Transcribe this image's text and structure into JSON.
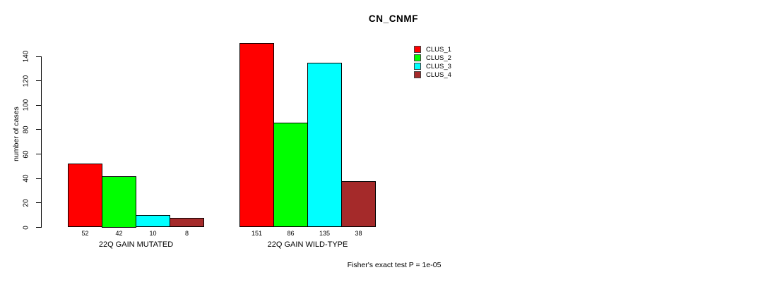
{
  "chart_data": {
    "type": "bar",
    "title": "CN_CNMF",
    "ylabel": "number of cases",
    "xlabel": "",
    "ylim": [
      0,
      140
    ],
    "yticks": [
      0,
      20,
      40,
      60,
      80,
      100,
      120,
      140
    ],
    "grid": false,
    "legend_position": "top-right",
    "bar_value_labels_shown": true,
    "categories": [
      "22Q GAIN MUTATED",
      "22Q GAIN WILD-TYPE"
    ],
    "series": [
      {
        "name": "CLUS_1",
        "color": "#ff0000",
        "values": [
          52,
          151
        ]
      },
      {
        "name": "CLUS_2",
        "color": "#00ff00",
        "values": [
          42,
          86
        ]
      },
      {
        "name": "CLUS_3",
        "color": "#00ffff",
        "values": [
          10,
          135
        ]
      },
      {
        "name": "CLUS_4",
        "color": "#a52a2a",
        "values": [
          8,
          38
        ]
      }
    ],
    "annotation": "Fisher's exact test P = 1e-05"
  }
}
